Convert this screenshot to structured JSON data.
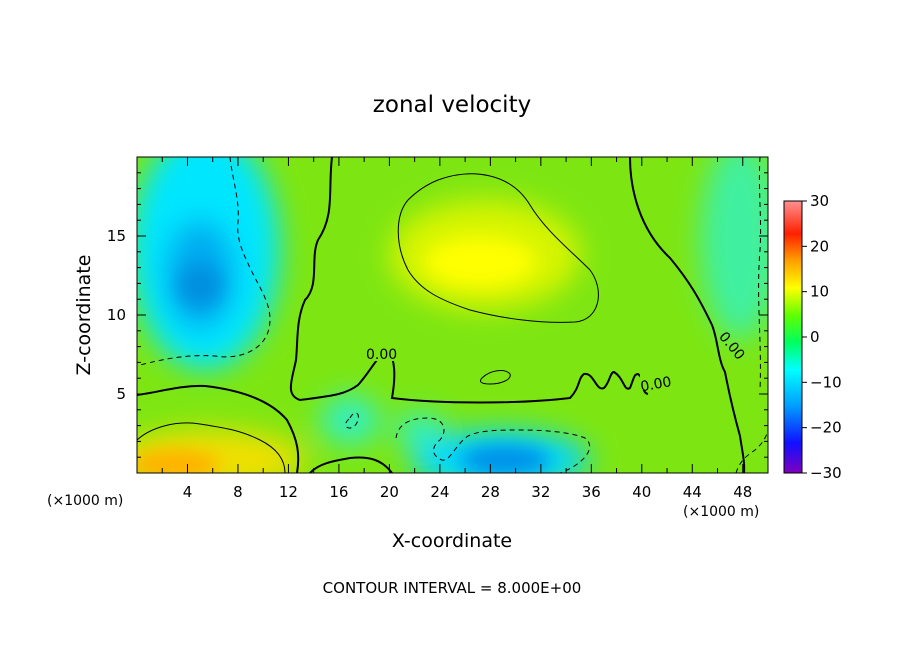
{
  "chart_data": {
    "type": "heatmap",
    "title": "zonal velocity",
    "xlabel": "X-coordinate",
    "ylabel": "Z-coordinate",
    "x_unit_label": "(×1000 m)",
    "x_unit_label_right": "(×1000 m)",
    "xlim": [
      0,
      50
    ],
    "ylim": [
      0,
      20
    ],
    "x_ticks": [
      4,
      8,
      12,
      16,
      20,
      24,
      28,
      32,
      36,
      40,
      44,
      48
    ],
    "x_tick_labels": [
      "4",
      "8",
      "12",
      "16",
      "20",
      "24",
      "28",
      "32",
      "36",
      "40",
      "44",
      "48"
    ],
    "y_ticks": [
      5,
      10,
      15
    ],
    "y_tick_labels": [
      "5",
      "10",
      "15"
    ],
    "colorbar": {
      "range": [
        -30,
        30
      ],
      "ticks": [
        30,
        20,
        10,
        0,
        -10,
        -20,
        -30
      ],
      "tick_labels": [
        "30",
        "20",
        "10",
        "0",
        "−10",
        "−20",
        "−30"
      ],
      "colormap": [
        "#7f00bf",
        "#1010ff",
        "#00a0ff",
        "#00ffff",
        "#00ff60",
        "#60ff00",
        "#ffff00",
        "#ffa000",
        "#ff2000",
        "#ff9090"
      ]
    },
    "contour_labels": [
      "0.00",
      "0.00",
      "0.00"
    ],
    "footer": "CONTOUR INTERVAL = 8.000E+00",
    "features": [
      {
        "kind": "negative",
        "x": 5,
        "z": 12,
        "value": -16
      },
      {
        "kind": "negative",
        "x": 29,
        "z": 1,
        "value": -18
      },
      {
        "kind": "positive",
        "x": 26,
        "z": 13,
        "value": 12
      },
      {
        "kind": "positive",
        "x": 6,
        "z": 1,
        "value": 16
      },
      {
        "kind": "negative",
        "x": 49,
        "z": 16,
        "value": -8
      }
    ]
  }
}
